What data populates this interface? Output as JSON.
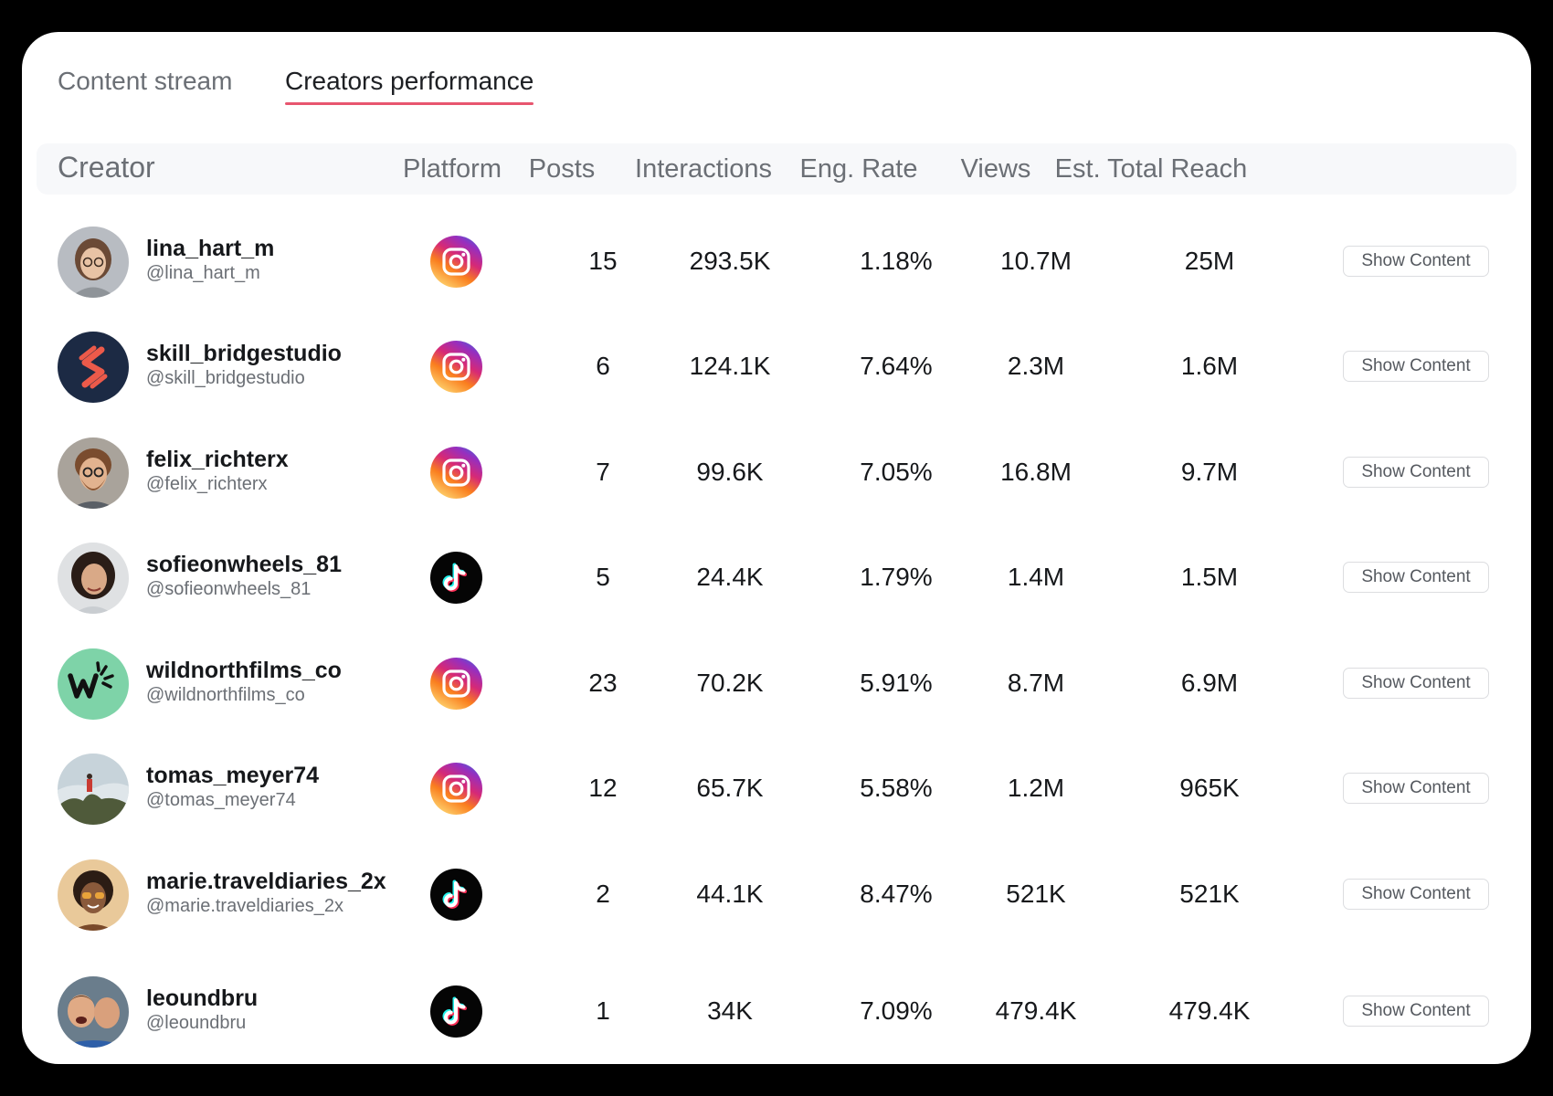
{
  "tabs": [
    {
      "label": "Content stream",
      "active": false
    },
    {
      "label": "Creators performance",
      "active": true
    }
  ],
  "columns": {
    "creator": "Creator",
    "platform": "Platform",
    "posts": "Posts",
    "interactions": "Interactions",
    "eng_rate": "Eng. Rate",
    "views": "Views",
    "reach": "Est. Total Reach"
  },
  "button_label": "Show Content",
  "colors": {
    "accent": "#e8566f",
    "instagram_gradient": [
      "#feda75",
      "#fa7e1e",
      "#d62976",
      "#962fbf",
      "#4f5bd5"
    ],
    "tiktok_cyan": "#25f4ee",
    "tiktok_red": "#fe2c55"
  },
  "rows": [
    {
      "name": "lina_hart_m",
      "handle": "@lina_hart_m",
      "platform": "instagram-icon",
      "posts": "15",
      "interactions": "293.5K",
      "eng_rate": "1.18%",
      "views": "10.7M",
      "reach": "25M",
      "avatar": "woman-glasses-avatar"
    },
    {
      "name": "skill_bridgestudio",
      "handle": "@skill_bridgestudio",
      "platform": "instagram-icon",
      "posts": "6",
      "interactions": "124.1K",
      "eng_rate": "7.64%",
      "views": "2.3M",
      "reach": "1.6M",
      "avatar": "s-logo-avatar"
    },
    {
      "name": "felix_richterx",
      "handle": "@felix_richterx",
      "platform": "instagram-icon",
      "posts": "7",
      "interactions": "99.6K",
      "eng_rate": "7.05%",
      "views": "16.8M",
      "reach": "9.7M",
      "avatar": "bearded-man-avatar"
    },
    {
      "name": "sofieonwheels_81",
      "handle": "@sofieonwheels_81",
      "platform": "tiktok-icon",
      "posts": "5",
      "interactions": "24.4K",
      "eng_rate": "1.79%",
      "views": "1.4M",
      "reach": "1.5M",
      "avatar": "curly-woman-avatar"
    },
    {
      "name": "wildnorthfilms_co",
      "handle": "@wildnorthfilms_co",
      "platform": "instagram-icon",
      "posts": "23",
      "interactions": "70.2K",
      "eng_rate": "5.91%",
      "views": "8.7M",
      "reach": "6.9M",
      "avatar": "w-logo-avatar"
    },
    {
      "name": "tomas_meyer74",
      "handle": "@tomas_meyer74",
      "platform": "instagram-icon",
      "posts": "12",
      "interactions": "65.7K",
      "eng_rate": "5.58%",
      "views": "1.2M",
      "reach": "965K",
      "avatar": "landscape-avatar"
    },
    {
      "name": "marie.traveldiaries_2x",
      "handle": "@marie.traveldiaries_2x",
      "platform": "tiktok-icon",
      "posts": "2",
      "interactions": "44.1K",
      "eng_rate": "8.47%",
      "views": "521K",
      "reach": "521K",
      "avatar": "woman-sunglasses-avatar"
    },
    {
      "name": "leoundbru",
      "handle": "@leoundbru",
      "platform": "tiktok-icon",
      "posts": "1",
      "interactions": "34K",
      "eng_rate": "7.09%",
      "views": "479.4K",
      "reach": "479.4K",
      "avatar": "two-men-avatar"
    }
  ]
}
